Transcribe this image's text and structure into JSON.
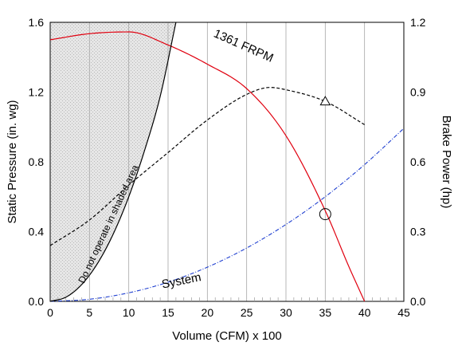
{
  "chart_data": {
    "type": "line",
    "x_axis": {
      "label": "Volume (CFM) x 100",
      "range": [
        0,
        45
      ],
      "ticks": [
        0,
        5,
        10,
        15,
        20,
        25,
        30,
        35,
        40,
        45
      ],
      "tick_labels": [
        "0",
        "5",
        "10",
        "15",
        "20",
        "25",
        "30",
        "35",
        "40",
        "45"
      ]
    },
    "y_left": {
      "label": "Static Pressure (in. wg)",
      "range": [
        0,
        1.6
      ],
      "ticks": [
        0,
        0.4,
        0.8,
        1.2,
        1.6
      ],
      "tick_labels": [
        "0.0",
        "0.4",
        "0.8",
        "1.2",
        "1.6"
      ]
    },
    "y_right": {
      "label": "Brake Power (hp)",
      "range": [
        0,
        1.2
      ],
      "ticks": [
        0,
        0.3,
        0.6,
        0.9,
        1.2
      ],
      "tick_labels": [
        "0.0",
        "0.3",
        "0.6",
        "0.9",
        "1.2"
      ]
    },
    "grid": "vertical",
    "series": [
      {
        "name": "1361 FRPM",
        "axis": "left",
        "style": "solid",
        "color": "#e0000f",
        "x": [
          0,
          5,
          10,
          15,
          20,
          25,
          30,
          35,
          38,
          40
        ],
        "y": [
          1.5,
          1.535,
          1.545,
          1.47,
          1.36,
          1.22,
          0.95,
          0.52,
          0.2,
          0.0
        ]
      },
      {
        "name": "",
        "axis": "right",
        "style": "dashed",
        "color": "#000000",
        "x": [
          0,
          5,
          10,
          15,
          20,
          25,
          28,
          30,
          35,
          40
        ],
        "y": [
          0.24,
          0.35,
          0.5,
          0.64,
          0.78,
          0.89,
          0.92,
          0.91,
          0.86,
          0.76
        ]
      },
      {
        "name": "System",
        "axis": "left",
        "style": "dash-dot",
        "color": "#1f3fd0",
        "x": [
          0,
          5,
          10,
          15,
          20,
          25,
          30,
          35,
          40,
          45
        ],
        "y": [
          0,
          0.012,
          0.049,
          0.11,
          0.196,
          0.306,
          0.441,
          0.6,
          0.784,
          0.992
        ]
      },
      {
        "name": "",
        "axis": "left",
        "style": "solid",
        "color": "#000000",
        "x": [
          0,
          2,
          4,
          6,
          8,
          10,
          12,
          14,
          16
        ],
        "y": [
          0,
          0.024,
          0.096,
          0.216,
          0.384,
          0.6,
          0.864,
          1.176,
          1.6
        ]
      }
    ],
    "shaded_region": {
      "note": "Do not operate in shaded area",
      "fill": "#dcdcdc"
    },
    "markers": [
      {
        "shape": "circle",
        "axis": "left",
        "x": 35,
        "y": 0.5
      },
      {
        "shape": "triangle",
        "axis": "right",
        "x": 35,
        "y": 0.86
      }
    ],
    "annotations": [
      {
        "text": "1361 FRPM"
      },
      {
        "text": "System"
      },
      {
        "text": "Do not operate in shaded area"
      }
    ]
  }
}
